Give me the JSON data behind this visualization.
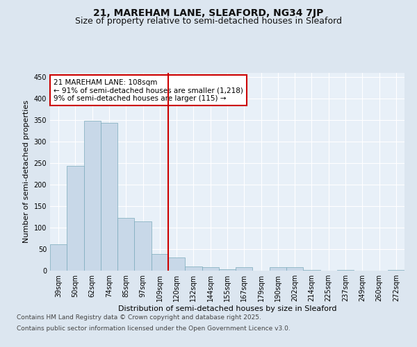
{
  "title_line1": "21, MAREHAM LANE, SLEAFORD, NG34 7JP",
  "title_line2": "Size of property relative to semi-detached houses in Sleaford",
  "xlabel": "Distribution of semi-detached houses by size in Sleaford",
  "ylabel": "Number of semi-detached properties",
  "categories": [
    "39sqm",
    "50sqm",
    "62sqm",
    "74sqm",
    "85sqm",
    "97sqm",
    "109sqm",
    "120sqm",
    "132sqm",
    "144sqm",
    "155sqm",
    "167sqm",
    "179sqm",
    "190sqm",
    "202sqm",
    "214sqm",
    "225sqm",
    "237sqm",
    "249sqm",
    "260sqm",
    "272sqm"
  ],
  "values": [
    62,
    243,
    348,
    343,
    122,
    115,
    38,
    30,
    9,
    8,
    3,
    8,
    0,
    8,
    8,
    2,
    0,
    1,
    0,
    0,
    1
  ],
  "bar_color": "#c8d8e8",
  "bar_edge_color": "#7aaabb",
  "property_line_index": 6,
  "property_label": "21 MAREHAM LANE: 108sqm",
  "annotation_line1": "← 91% of semi-detached houses are smaller (1,218)",
  "annotation_line2": "9% of semi-detached houses are larger (115) →",
  "annotation_box_color": "#ffffff",
  "annotation_box_edge": "#cc0000",
  "property_line_color": "#cc0000",
  "ylim": [
    0,
    460
  ],
  "yticks": [
    0,
    50,
    100,
    150,
    200,
    250,
    300,
    350,
    400,
    450
  ],
  "bg_color": "#dce6f0",
  "plot_bg_color": "#e8f0f8",
  "grid_color": "#ffffff",
  "footer_line1": "Contains HM Land Registry data © Crown copyright and database right 2025.",
  "footer_line2": "Contains public sector information licensed under the Open Government Licence v3.0.",
  "title_fontsize": 10,
  "subtitle_fontsize": 9,
  "axis_label_fontsize": 8,
  "tick_fontsize": 7,
  "annotation_fontsize": 7.5,
  "footer_fontsize": 6.5
}
